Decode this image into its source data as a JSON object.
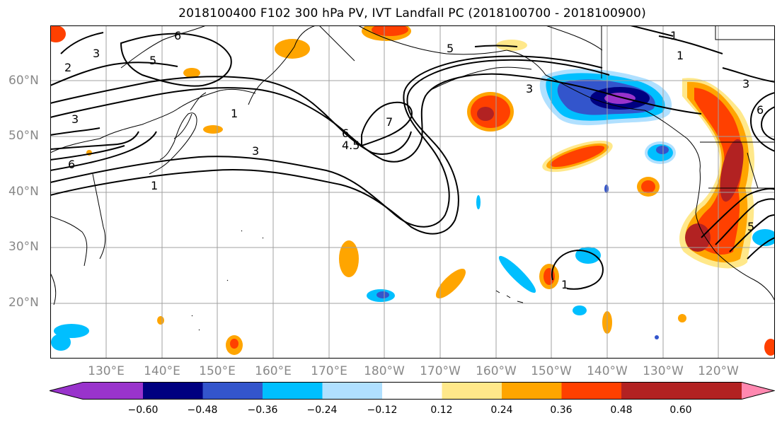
{
  "title": "2018100400 F102 300 hPa PV, IVT Landfall PC (2018100700 - 2018100900)",
  "map": {
    "projection": "equirectangular",
    "lon_range": [
      "120°E",
      "115°W"
    ],
    "lat_range": [
      "10°N",
      "70°N"
    ],
    "lat_labels": [
      "60°N",
      "50°N",
      "40°N",
      "30°N",
      "20°N"
    ],
    "lon_labels": [
      "130°E",
      "140°E",
      "150°E",
      "160°E",
      "170°E",
      "180°W",
      "170°W",
      "160°W",
      "150°W",
      "140°W",
      "130°W",
      "120°W"
    ],
    "contour_labels": [
      "6",
      "5",
      "3",
      "2",
      "6",
      "3",
      "1",
      "1",
      "7",
      "6",
      "4.5",
      "3",
      "6",
      "5",
      "1",
      "1",
      "3",
      "1",
      "3",
      "5"
    ],
    "shading_levels": [
      "-0.60",
      "-0.48",
      "-0.36",
      "-0.24",
      "-0.12",
      "0.12",
      "0.24",
      "0.36",
      "0.48",
      "0.60"
    ]
  },
  "colorbar": {
    "ticks": [
      "−0.60",
      "−0.48",
      "−0.36",
      "−0.24",
      "−0.12",
      "0.12",
      "0.24",
      "0.36",
      "0.48",
      "0.60"
    ],
    "colors": [
      "#9933cc",
      "#000080",
      "#3355cc",
      "#00bfff",
      "#b0e0ff",
      "#ffffff",
      "#ffe88a",
      "#ffa500",
      "#ff4000",
      "#b22222",
      "#ff88b0"
    ]
  }
}
